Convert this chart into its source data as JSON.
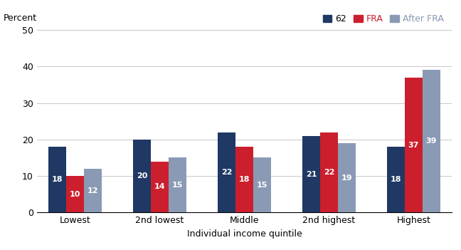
{
  "categories": [
    "Lowest",
    "2nd lowest",
    "Middle",
    "2nd highest",
    "Highest"
  ],
  "series": {
    "62": [
      18,
      20,
      22,
      21,
      18
    ],
    "FRA": [
      10,
      14,
      18,
      22,
      37
    ],
    "After FRA": [
      12,
      15,
      15,
      19,
      39
    ]
  },
  "colors": {
    "62": "#1f3864",
    "FRA": "#cc1f2d",
    "After FRA": "#8a9ab5"
  },
  "legend_text_colors": {
    "62": "#000000",
    "FRA": "#cc1f2d",
    "After FRA": "#8a9ab5"
  },
  "ylabel": "Percent",
  "xlabel": "Individual income quintile",
  "ylim": [
    0,
    50
  ],
  "yticks": [
    0,
    10,
    20,
    30,
    40,
    50
  ],
  "legend_labels": [
    "62",
    "FRA",
    "After FRA"
  ],
  "bar_label_color": "white",
  "bar_label_fontsize": 8,
  "background_color": "#ffffff",
  "grid_color": "#c8c8c8"
}
